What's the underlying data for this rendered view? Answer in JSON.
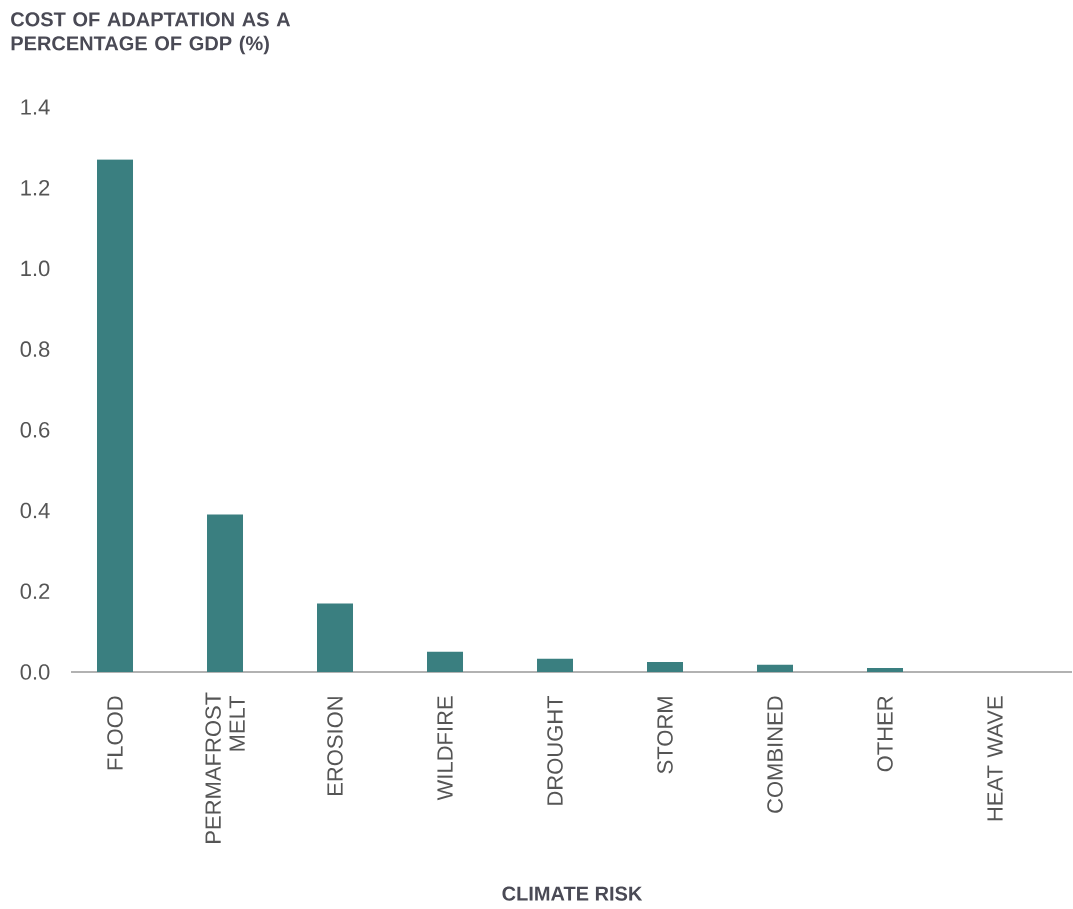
{
  "chart_data": {
    "type": "bar",
    "ylabel": "COST OF ADAPTATION AS A PERCENTAGE OF GDP (%)",
    "xlabel": "CLIMATE RISK",
    "categories": [
      "FLOOD",
      "PERMAFROST MELT",
      "EROSION",
      "WILDFIRE",
      "DROUGHT",
      "STORM",
      "COMBINED",
      "OTHER",
      "HEAT WAVE"
    ],
    "values": [
      1.27,
      0.39,
      0.17,
      0.05,
      0.033,
      0.025,
      0.018,
      0.01,
      0
    ],
    "color": "#3a7f80",
    "ylim": [
      0,
      1.4
    ],
    "yticks": [
      {
        "value": 0,
        "label": "0.0"
      },
      {
        "value": 0.2,
        "label": "0.2"
      },
      {
        "value": 0.4,
        "label": "0.4"
      },
      {
        "value": 0.6,
        "label": "0.6"
      },
      {
        "value": 0.8,
        "label": "0.8"
      },
      {
        "value": 1.0,
        "label": "1.0"
      },
      {
        "value": 1.2,
        "label": "1.2"
      },
      {
        "value": 1.4,
        "label": "1.4"
      }
    ],
    "grid": false
  }
}
